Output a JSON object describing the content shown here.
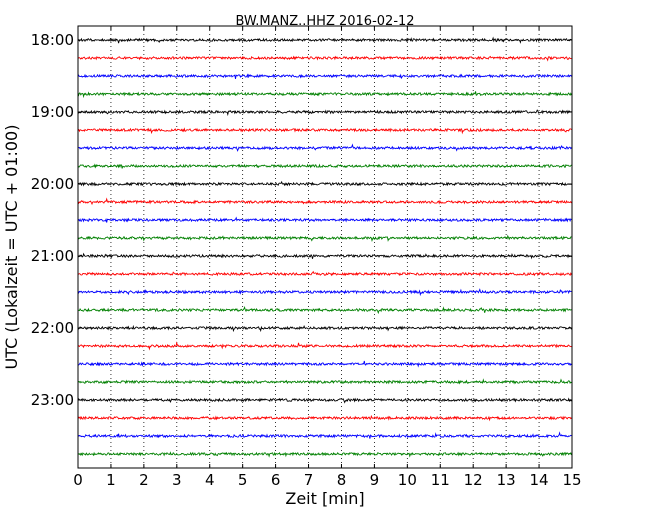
{
  "chart_data": {
    "type": "line",
    "title": "BW.MANZ..HHZ 2016-02-12",
    "xlabel": "Zeit  [min]",
    "ylabel": "UTC (Lokalzeit = UTC + 01:00)",
    "xlim": [
      0,
      15
    ],
    "xticks": [
      0,
      1,
      2,
      3,
      4,
      5,
      6,
      7,
      8,
      9,
      10,
      11,
      12,
      13,
      14,
      15
    ],
    "yticks": [
      "18:00",
      "19:00",
      "20:00",
      "21:00",
      "22:00",
      "23:00"
    ],
    "trace_start": "18:00",
    "trace_interval_min": 15,
    "trace_count": 24,
    "trace_colors": [
      "#000000",
      "#ff0000",
      "#0000ff",
      "#008000"
    ],
    "grid": "vertical dotted"
  }
}
